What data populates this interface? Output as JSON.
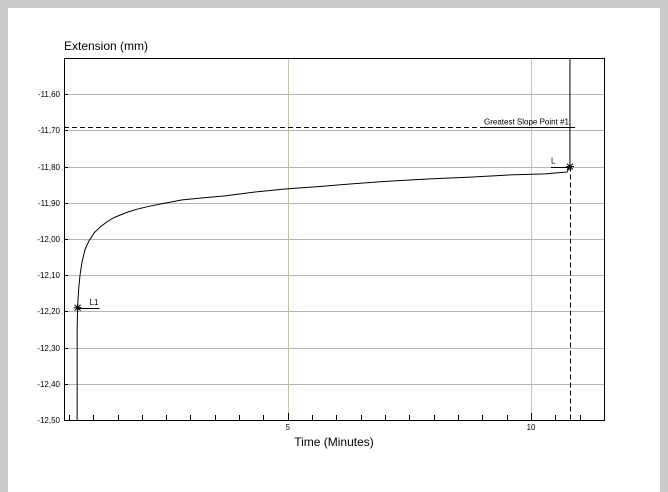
{
  "chart_data": {
    "type": "line",
    "ylabel": "Extension (mm)",
    "xlabel": "Time (Minutes)",
    "xlim": [
      0.4,
      11.5
    ],
    "ylim": [
      -12.5,
      -11.5
    ],
    "yticks": [
      {
        "value": -11.6,
        "label": "-11,60"
      },
      {
        "value": -11.7,
        "label": "-11,70"
      },
      {
        "value": -11.8,
        "label": "-11,80"
      },
      {
        "value": -11.9,
        "label": "-11,90"
      },
      {
        "value": -12.0,
        "label": "-12,00"
      },
      {
        "value": -12.1,
        "label": "-12,10"
      },
      {
        "value": -12.2,
        "label": "-12,20"
      },
      {
        "value": -12.3,
        "label": "-12,30"
      },
      {
        "value": -12.4,
        "label": "-12,40"
      },
      {
        "value": -12.5,
        "label": "-12,50"
      }
    ],
    "xticks": [
      {
        "value": 5,
        "label": "5"
      },
      {
        "value": 10,
        "label": "10"
      }
    ],
    "x_minor_tick_interval": 0.5,
    "grid": true,
    "legend": "none",
    "series": [
      {
        "x": [
          0.67,
          0.67,
          0.68,
          0.7,
          0.73,
          0.77,
          0.83,
          0.91,
          1.02,
          1.14,
          1.28,
          1.41,
          1.55,
          1.72,
          1.92,
          2.17,
          2.48,
          2.83,
          3.2,
          3.71,
          4.33,
          4.94,
          5.56,
          6.28,
          7.1,
          7.92,
          8.75,
          9.57,
          10.29,
          10.74,
          10.8,
          10.8
        ],
        "y": [
          -12.5,
          -12.251,
          -12.188,
          -12.141,
          -12.099,
          -12.064,
          -12.03,
          -12.006,
          -11.983,
          -11.967,
          -11.953,
          -11.942,
          -11.934,
          -11.925,
          -11.917,
          -11.909,
          -11.901,
          -11.892,
          -11.887,
          -11.881,
          -11.87,
          -11.862,
          -11.856,
          -11.848,
          -11.84,
          -11.834,
          -11.829,
          -11.823,
          -11.82,
          -11.815,
          -11.798,
          -11.5
        ]
      }
    ],
    "markers": [
      {
        "label": "L1",
        "x": 0.68,
        "y": -12.19
      },
      {
        "label": "L",
        "x": 10.8,
        "y": -11.8
      }
    ],
    "reference_lines": [
      {
        "orientation": "horizontal",
        "y": -11.69,
        "label": "Greatest Slope Point #1",
        "style": "dashed"
      },
      {
        "orientation": "vertical",
        "x": 10.8,
        "y_from": -12.5,
        "y_to": -11.8,
        "style": "dashed"
      }
    ]
  },
  "colors": {
    "line": "#000000",
    "grid_horizontal": "#b5b5b5",
    "grid_vertical": "#c6c6a6",
    "axis": "#000000"
  }
}
